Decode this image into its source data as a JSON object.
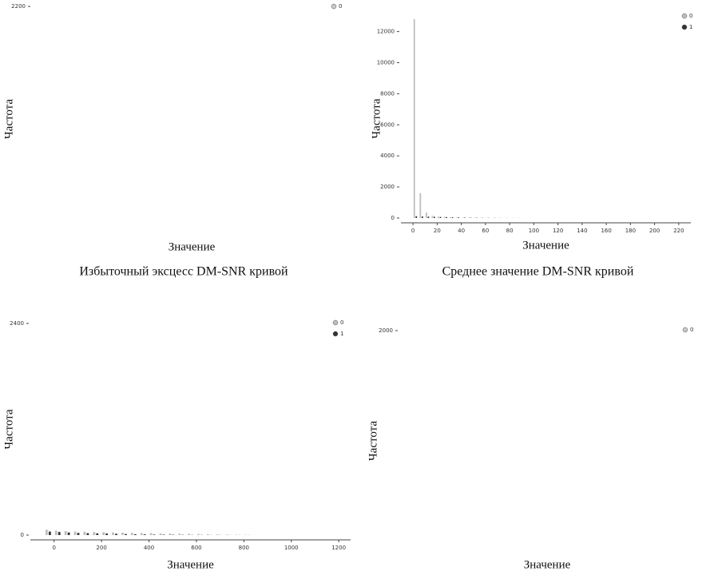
{
  "chart_data": [
    {
      "type": "histogram",
      "ylabel": "Частота",
      "xlabel": "Значение",
      "caption": "Избыточный эксцесс DM-SNR кривой",
      "ylim": [
        0,
        2200
      ],
      "yticks": [
        2200
      ],
      "series": [
        {
          "name": "0",
          "color": "#c8c8c8"
        }
      ]
    },
    {
      "type": "histogram",
      "ylabel": "Частота",
      "xlabel": "Значение",
      "caption": "Среднее значение DM-SNR кривой",
      "ylim": [
        0,
        12800
      ],
      "yticks": [
        0,
        2000,
        4000,
        6000,
        8000,
        10000,
        12000
      ],
      "xlim": [
        -10,
        230
      ],
      "xticks": [
        0,
        20,
        40,
        60,
        80,
        100,
        120,
        140,
        160,
        180,
        200,
        220
      ],
      "bins": [
        0,
        5,
        10,
        15,
        20,
        25,
        30,
        35,
        40,
        45,
        50,
        55,
        60,
        65,
        70,
        75,
        80,
        85,
        90,
        95,
        100,
        105,
        110,
        115,
        120,
        125,
        130,
        135
      ],
      "series": [
        {
          "name": "0",
          "color": "#bdbdbd",
          "values": [
            12800,
            1600,
            350,
            150,
            100,
            80,
            60,
            40,
            30,
            25,
            20,
            15,
            12,
            10,
            8,
            6,
            5,
            4,
            3,
            3,
            2,
            2,
            1,
            1,
            1,
            1,
            1
          ]
        },
        {
          "name": "1",
          "color": "#333333",
          "values": [
            120,
            100,
            90,
            80,
            70,
            60,
            50,
            40,
            30,
            25,
            20,
            15,
            12,
            10,
            8,
            6,
            5,
            4,
            3,
            2,
            2,
            1,
            1,
            1,
            1,
            1,
            1
          ]
        }
      ]
    },
    {
      "type": "histogram",
      "xlabel": "Значение",
      "ylabel": "Частота",
      "ylim": [
        0,
        2400
      ],
      "yticks": [
        0,
        2400
      ],
      "xlim": [
        -100,
        1250
      ],
      "xticks": [
        0,
        200,
        400,
        600,
        800,
        1000,
        1200
      ],
      "bins": [
        -40,
        0,
        40,
        80,
        120,
        160,
        200,
        240,
        280,
        320,
        360,
        400,
        440,
        480,
        520,
        560,
        600,
        640,
        680,
        720,
        760,
        800,
        840
      ],
      "series": [
        {
          "name": "0",
          "color": "#bdbdbd",
          "values": [
            60,
            50,
            45,
            40,
            38,
            35,
            32,
            30,
            28,
            26,
            24,
            22,
            20,
            18,
            16,
            14,
            12,
            10,
            8,
            6,
            4,
            3
          ]
        },
        {
          "name": "1",
          "color": "#333333",
          "values": [
            40,
            35,
            30,
            25,
            22,
            20,
            18,
            15,
            12,
            10,
            8,
            6,
            5,
            4,
            3,
            2,
            2,
            1,
            1,
            1,
            1,
            1
          ]
        }
      ]
    },
    {
      "type": "histogram",
      "ylabel": "Частота",
      "xlabel": "Значение",
      "ylim": [
        0,
        2000
      ],
      "yticks": [
        2000
      ],
      "series": [
        {
          "name": "0",
          "color": "#c8c8c8"
        }
      ]
    }
  ]
}
